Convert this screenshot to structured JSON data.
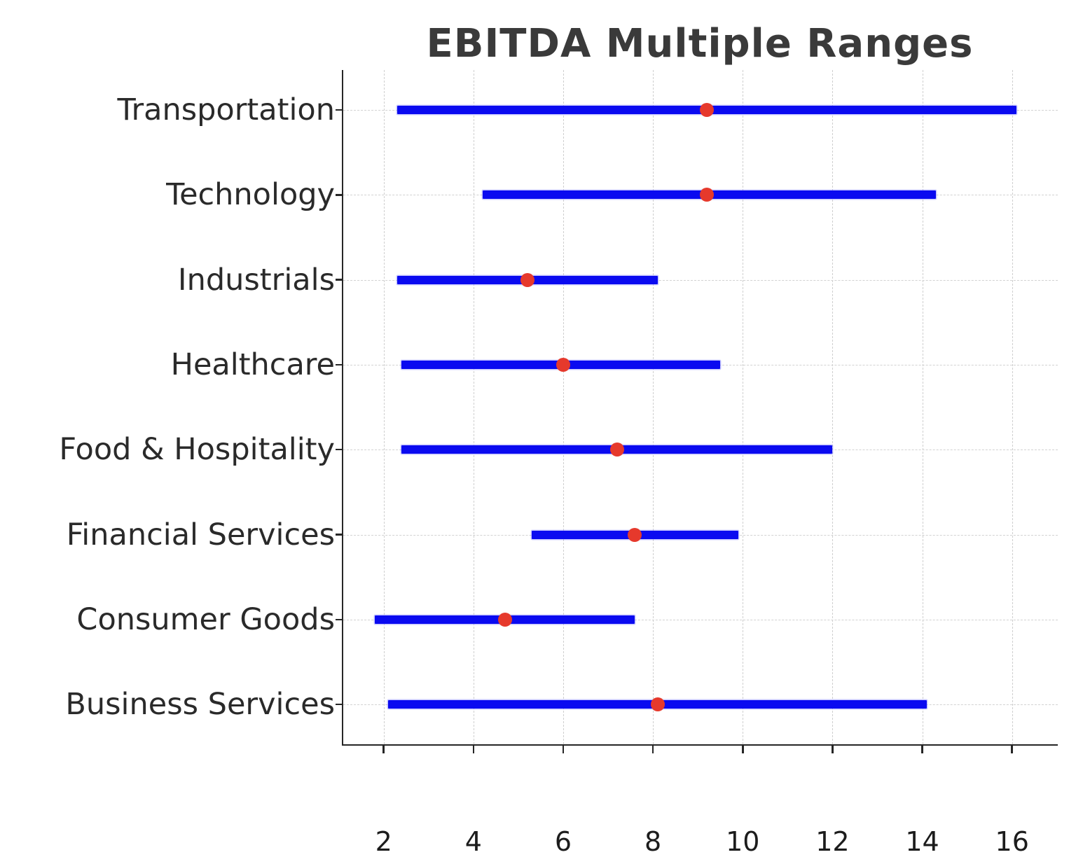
{
  "title": "EBITDA Multiple Ranges",
  "colors": {
    "bar": "#0a0af0",
    "dot": "#e6392c",
    "title_text": "#3a3a3a",
    "axis": "#262626",
    "grid": "#cfcfcf",
    "tick_text": "#1c1c1c"
  },
  "chart_data": {
    "type": "bar",
    "subtype": "horizontal-range-with-median-dot",
    "title": "EBITDA Multiple Ranges",
    "xlabel": "",
    "ylabel": "",
    "xlim": [
      1.1,
      17.05
    ],
    "x_ticks": [
      2,
      4,
      6,
      8,
      10,
      12,
      14,
      16
    ],
    "grid": "both-dashed",
    "legend": "none",
    "categories": [
      "Transportation",
      "Technology",
      "Industrials",
      "Healthcare",
      "Food & Hospitality",
      "Financial Services",
      "Consumer Goods",
      "Business Services"
    ],
    "series": [
      {
        "name": "range_low",
        "values": [
          2.3,
          4.2,
          2.3,
          2.4,
          2.4,
          5.3,
          1.8,
          2.1
        ]
      },
      {
        "name": "median",
        "values": [
          9.2,
          9.2,
          5.2,
          6.0,
          7.2,
          7.6,
          4.7,
          8.1
        ]
      },
      {
        "name": "range_high",
        "values": [
          16.1,
          14.3,
          8.1,
          9.5,
          12.0,
          9.9,
          7.6,
          14.1
        ]
      }
    ]
  }
}
